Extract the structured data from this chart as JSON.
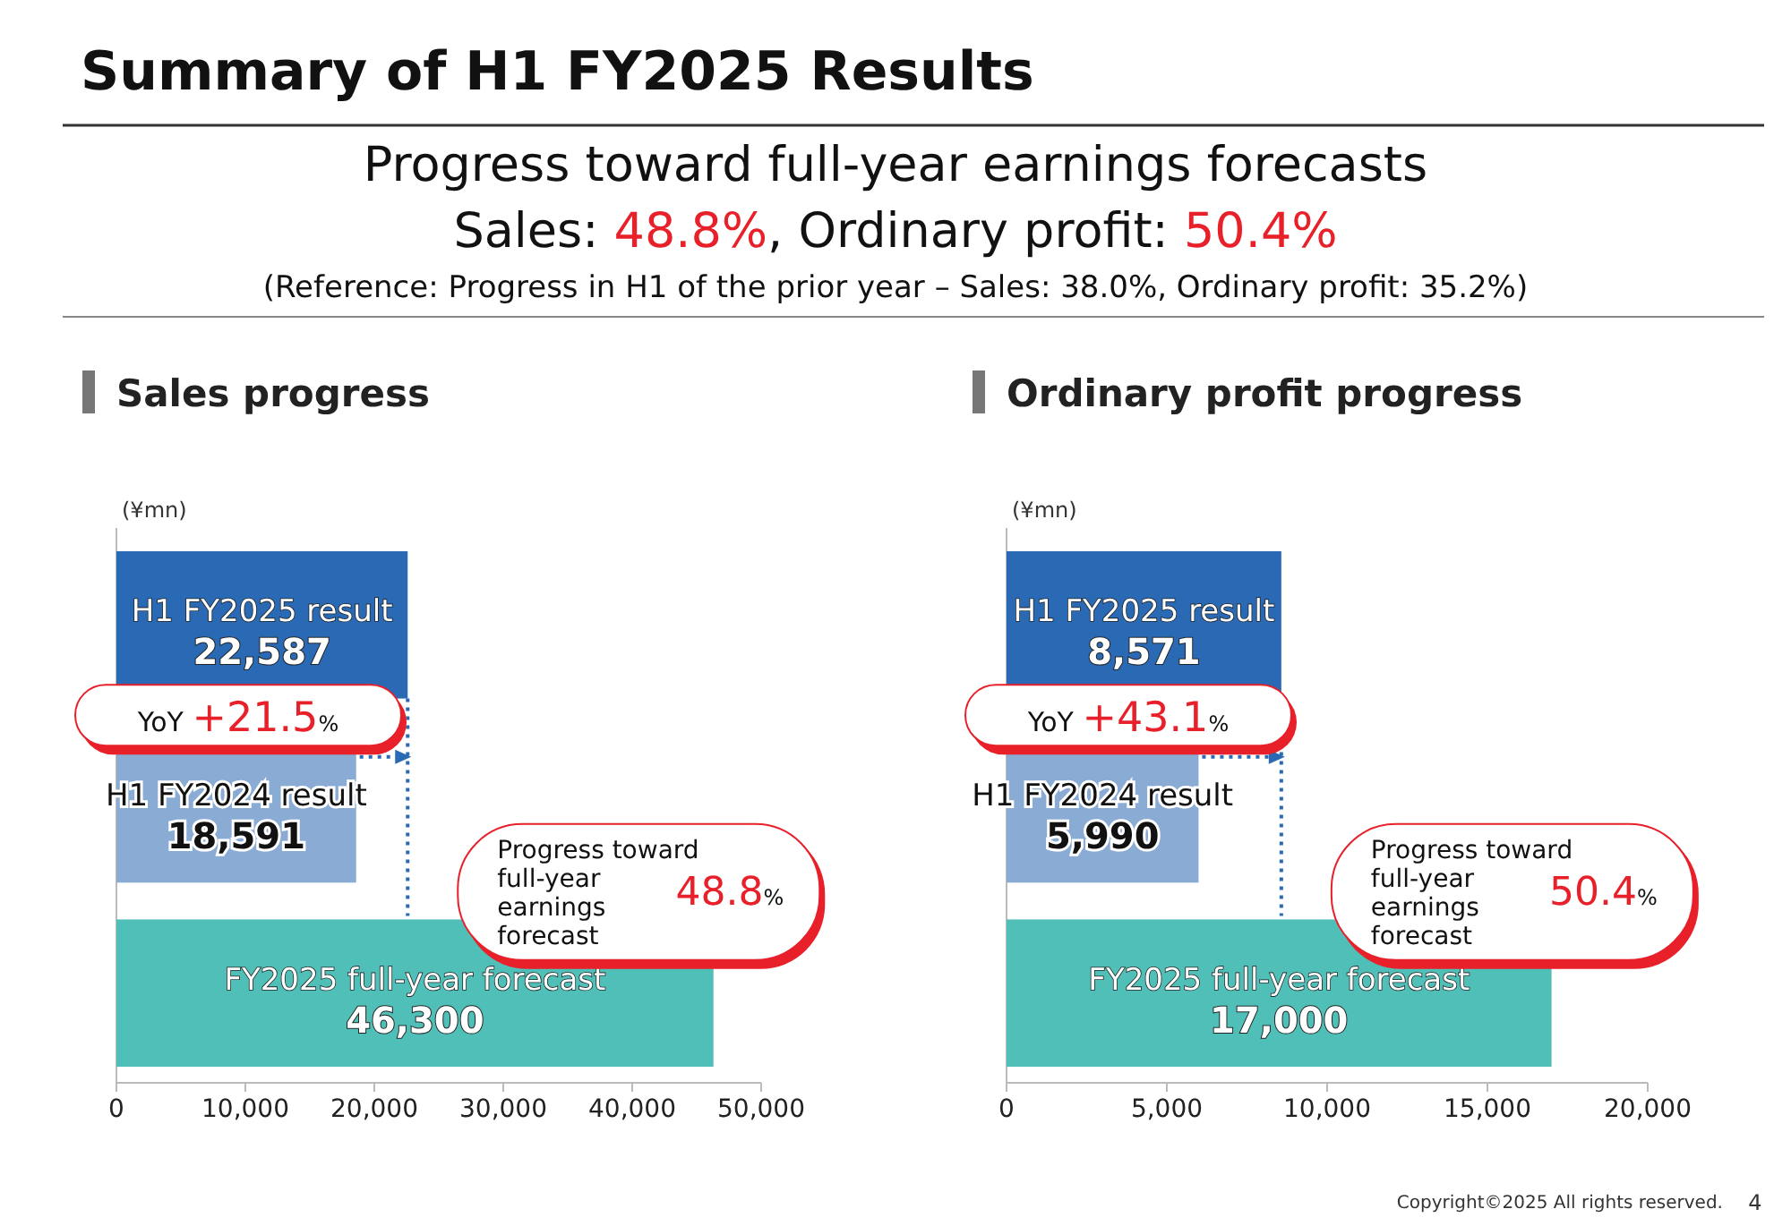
{
  "chart_data": [
    {
      "type": "other",
      "title": "Summary of H1 FY2025 Results",
      "subtitle": "Progress toward full-year earnings forecasts",
      "annotations": [
        "Sales: 48.8%, Ordinary profit: 50.4%",
        "(Reference: Progress in H1 of the prior year – Sales: 38.0%, Ordinary profit: 35.2%)",
        "Copyright©2025 All rights reserved.",
        "4"
      ]
    },
    {
      "type": "bar",
      "orientation": "horizontal",
      "title": "Sales progress",
      "xlabel": "(¥mn)",
      "categories": [
        "H1 FY2025 result",
        "H1 FY2024 result",
        "FY2025 full-year forecast"
      ],
      "values": [
        22587,
        18591,
        46300
      ],
      "colors": [
        "#2a69b4",
        "#8aabd3",
        "#50bfb8"
      ],
      "value_labels": [
        "22,587",
        "18,591",
        "46,300"
      ],
      "ref_lines": [
        {
          "axis": "x",
          "value": 22587,
          "color": "#2a69b4",
          "line_style": "dotted"
        }
      ],
      "xlim": [
        0,
        50000
      ],
      "xticks": [
        {
          "value": 0,
          "label": "0"
        },
        {
          "value": 10000,
          "label": "10,000"
        },
        {
          "value": 20000,
          "label": "20,000"
        },
        {
          "value": 30000,
          "label": "30,000"
        },
        {
          "value": 40000,
          "label": "40,000"
        },
        {
          "value": 50000,
          "label": "50,000"
        }
      ],
      "annotations": [
        "YoY +21.5%",
        "Progress toward full-year earnings forecast 48.8%"
      ]
    },
    {
      "type": "bar",
      "orientation": "horizontal",
      "title": "Ordinary profit progress",
      "xlabel": "(¥mn)",
      "categories": [
        "H1 FY2025 result",
        "H1 FY2024 result",
        "FY2025 full-year forecast"
      ],
      "values": [
        8571,
        5990,
        17000
      ],
      "colors": [
        "#2a69b4",
        "#8aabd3",
        "#50bfb8"
      ],
      "value_labels": [
        "8,571",
        "5,990",
        "17,000"
      ],
      "ref_lines": [
        {
          "axis": "x",
          "value": 8571,
          "color": "#2a69b4",
          "line_style": "dotted"
        }
      ],
      "xlim": [
        0,
        20000
      ],
      "xticks": [
        {
          "value": 0,
          "label": "0"
        },
        {
          "value": 5000,
          "label": "5,000"
        },
        {
          "value": 10000,
          "label": "10,000"
        },
        {
          "value": 15000,
          "label": "15,000"
        },
        {
          "value": 20000,
          "label": "20,000"
        }
      ],
      "annotations": [
        "YoY +43.1%",
        "Progress toward full-year earnings forecast 50.4%"
      ]
    }
  ]
}
